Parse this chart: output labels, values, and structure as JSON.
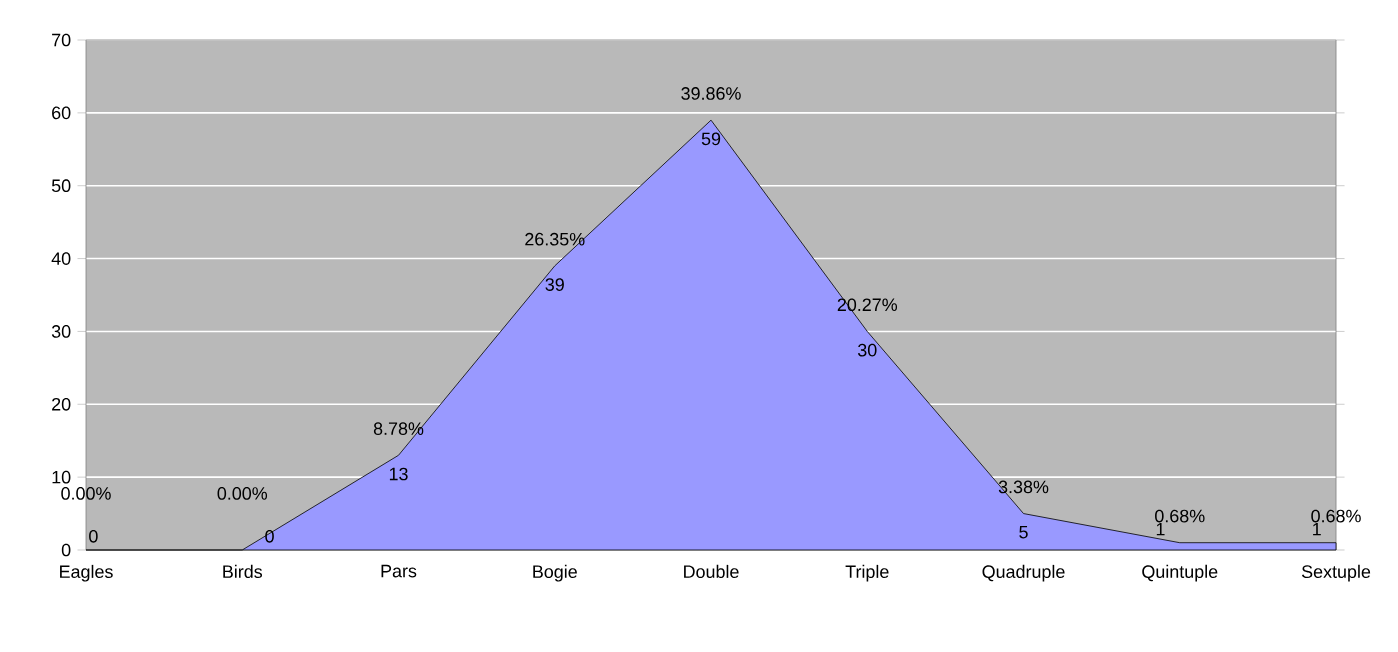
{
  "chart_data": {
    "type": "area",
    "categories": [
      "Eagles",
      "Birds",
      "Pars",
      "Bogie",
      "Double",
      "Triple",
      "Quadruple",
      "Quintuple",
      "Sextuple"
    ],
    "values": [
      0,
      0,
      13,
      39,
      59,
      30,
      5,
      1,
      1
    ],
    "value_labels": [
      "0",
      "0",
      "13",
      "39",
      "59",
      "30",
      "5",
      "1",
      "1"
    ],
    "annotations": [
      {
        "text": "0.00%",
        "x": "Eagles",
        "y": 0
      },
      {
        "text": "0.00%",
        "x": "Birds",
        "y": 0
      },
      {
        "text": "8.78%",
        "x": "Pars",
        "y": 13
      },
      {
        "text": "26.35%",
        "x": "Bogie",
        "y": 39
      },
      {
        "text": "39.86%",
        "x": "Double",
        "y": 59
      },
      {
        "text": "20.27%",
        "x": "Triple",
        "y": 30
      },
      {
        "text": "3.38%",
        "x": "Quadruple",
        "y": 5
      },
      {
        "text": "0.68%",
        "x": "Quintuple",
        "y": 1
      },
      {
        "text": "0.68%",
        "x": "Sextuple",
        "y": 1
      }
    ],
    "color": "#9999ff",
    "ylim": [
      0,
      70
    ],
    "yticks": [
      0,
      10,
      20,
      30,
      40,
      50,
      60,
      70
    ],
    "grid": "y"
  }
}
